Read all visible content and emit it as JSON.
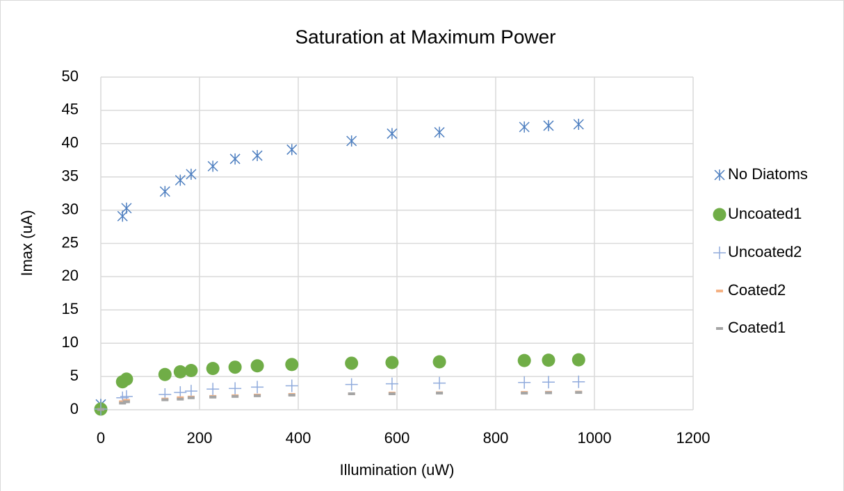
{
  "chart_data": {
    "type": "scatter",
    "title": "Saturation at Maximum Power",
    "x_label": "Illumination (uW)",
    "y_label": "Imax (uA)",
    "x": [
      0,
      44,
      52,
      130,
      161,
      183,
      227,
      272,
      317,
      387,
      508,
      590,
      686,
      858,
      907,
      968
    ],
    "series": [
      {
        "name": "No Diatoms",
        "color": "#4e7fc0",
        "marker": "asterisk",
        "values": [
          0.8,
          29.1,
          30.3,
          32.8,
          34.5,
          35.4,
          36.6,
          37.7,
          38.2,
          39.1,
          40.4,
          41.5,
          41.7,
          42.5,
          42.7,
          42.9
        ]
      },
      {
        "name": "Uncoated1",
        "color": "#70ad47",
        "marker": "circle",
        "values": [
          0.1,
          4.2,
          4.6,
          5.3,
          5.7,
          5.9,
          6.2,
          6.4,
          6.6,
          6.8,
          7.0,
          7.1,
          7.2,
          7.4,
          7.45,
          7.5
        ]
      },
      {
        "name": "Uncoated2",
        "color": "#8faadc",
        "marker": "plus",
        "values": [
          0.1,
          1.8,
          2.0,
          2.3,
          2.6,
          2.8,
          3.1,
          3.2,
          3.4,
          3.6,
          3.8,
          3.9,
          4.0,
          4.1,
          4.15,
          4.2
        ]
      },
      {
        "name": "Coated2",
        "color": "#f4b183",
        "marker": "dash",
        "values": [
          0.05,
          1.2,
          1.4,
          1.6,
          1.8,
          1.9,
          2.0,
          2.1,
          2.2,
          2.3,
          2.4,
          2.5,
          2.55,
          2.6,
          2.62,
          2.65
        ]
      },
      {
        "name": "Coated1",
        "color": "#a5a5a5",
        "marker": "dash",
        "values": [
          0.05,
          1.0,
          1.2,
          1.5,
          1.6,
          1.8,
          1.9,
          2.0,
          2.1,
          2.2,
          2.4,
          2.4,
          2.5,
          2.5,
          2.55,
          2.6
        ]
      }
    ],
    "xlim": [
      0,
      1200
    ],
    "xticks": [
      0,
      200,
      400,
      600,
      800,
      1000,
      1200
    ],
    "ylim": [
      0,
      50
    ],
    "yticks": [
      0,
      5,
      10,
      15,
      20,
      25,
      30,
      35,
      40,
      45,
      50
    ],
    "grid": true,
    "legend": "right"
  }
}
